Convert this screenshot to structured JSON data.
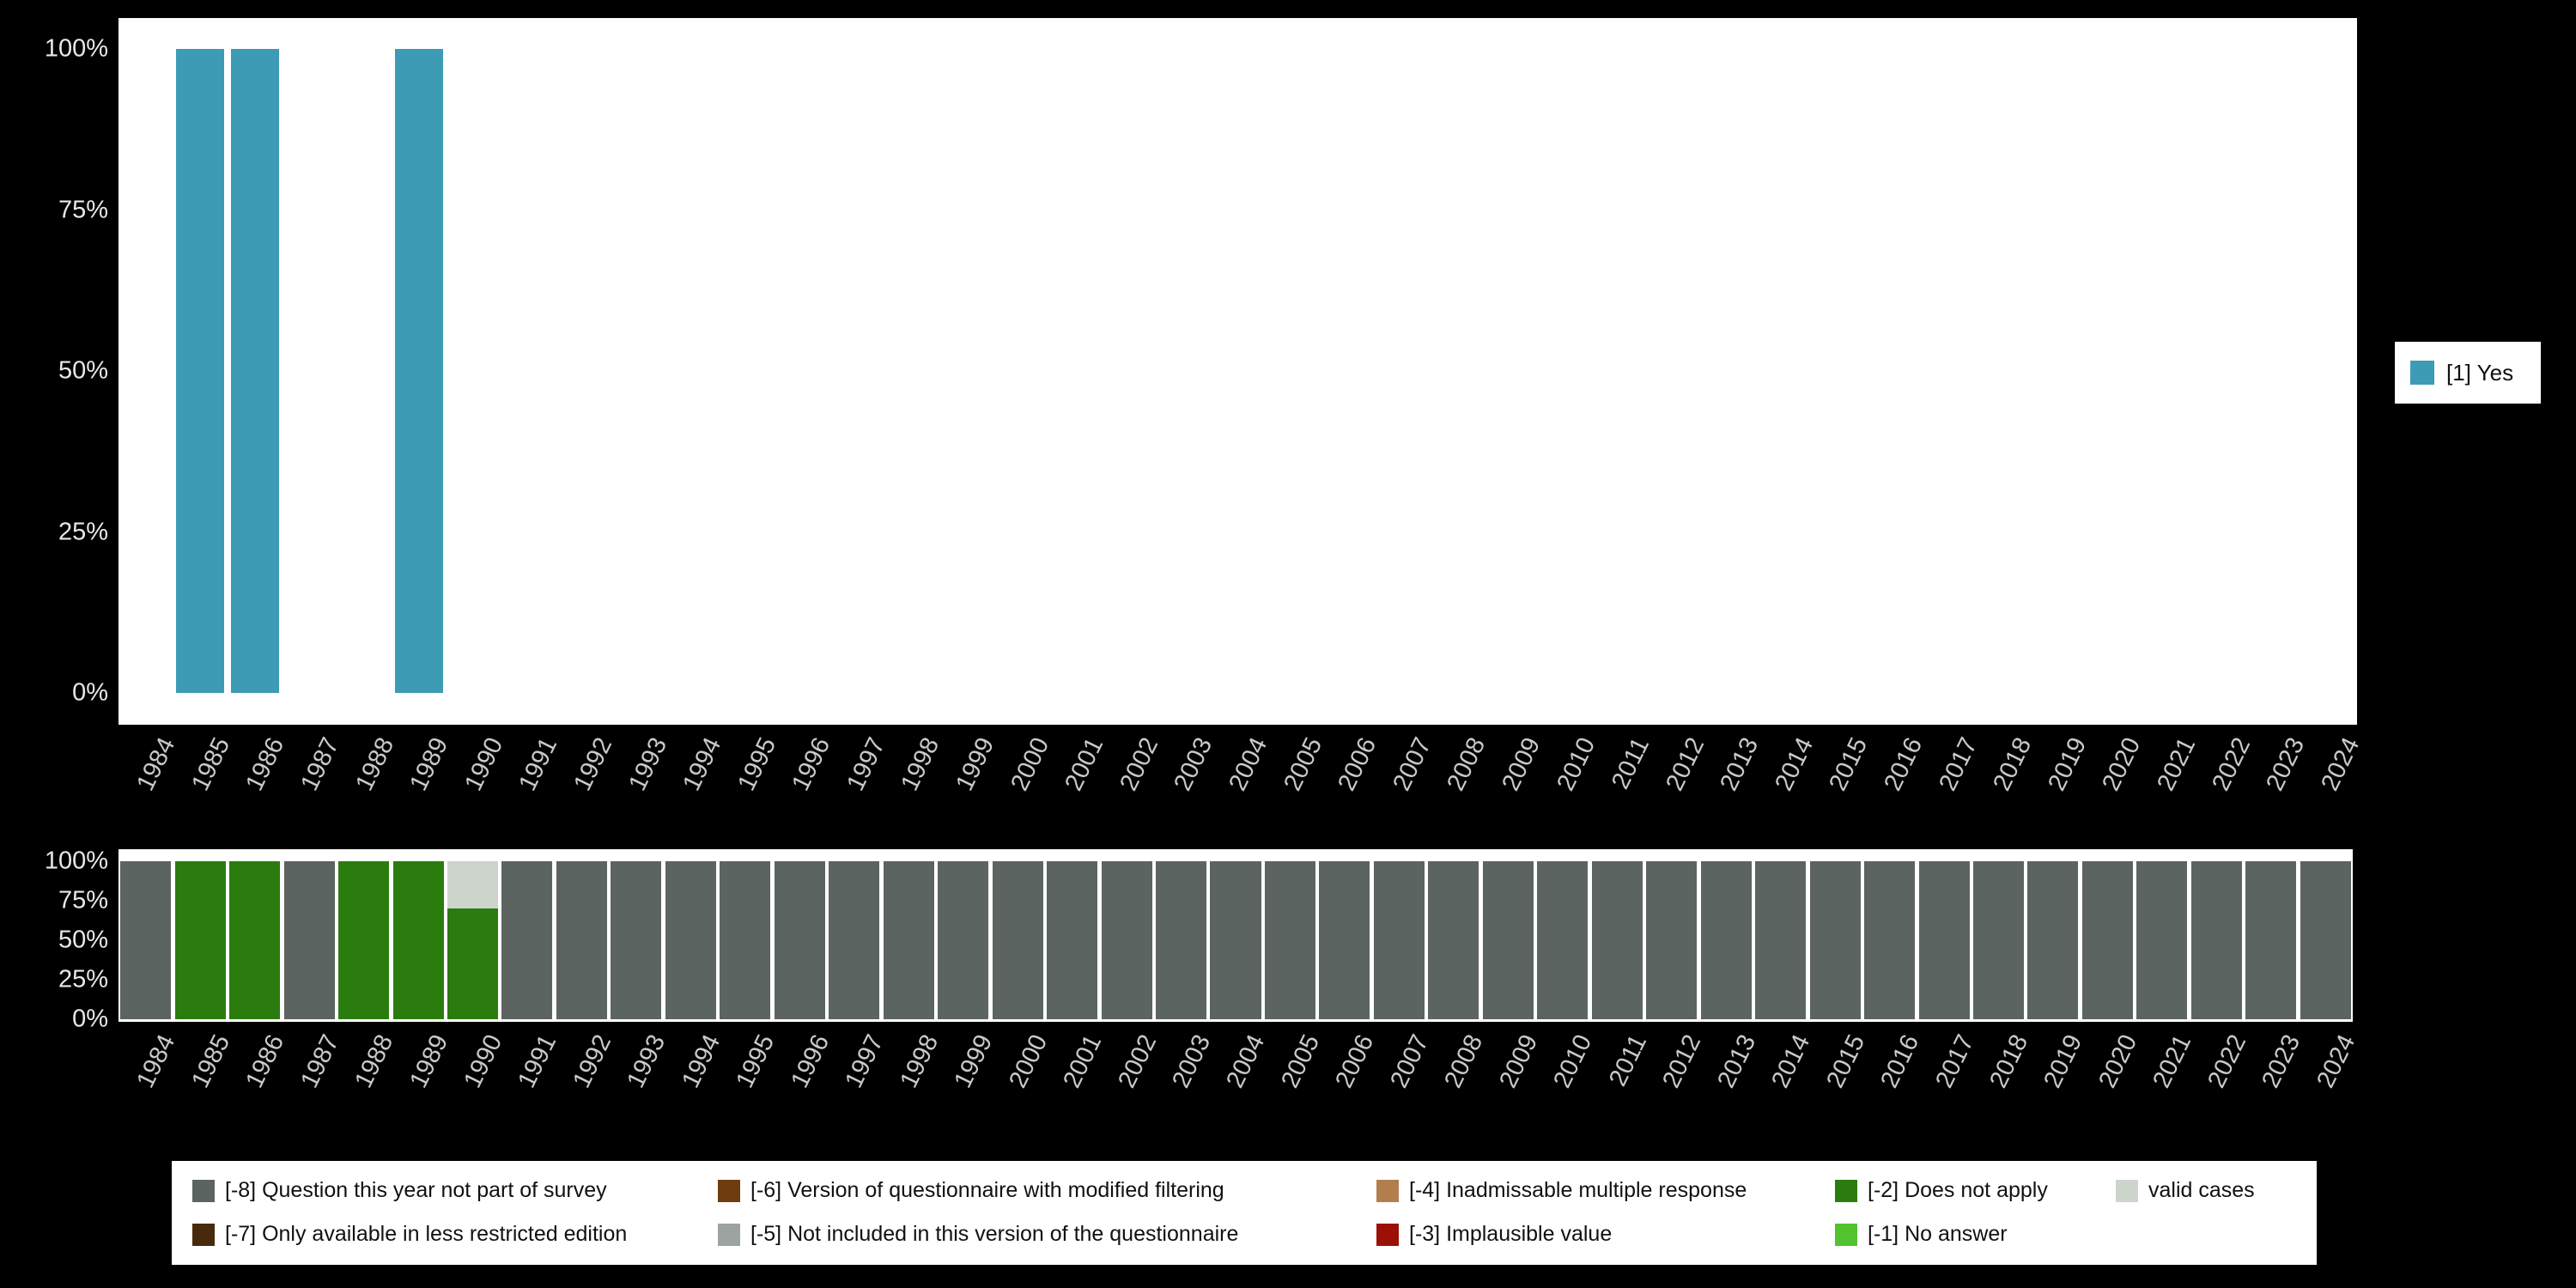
{
  "page_background": "#000000",
  "chart_data": [
    {
      "id": "distribution",
      "type": "bar",
      "stacked": true,
      "title": "",
      "x": [
        1984,
        1985,
        1986,
        1987,
        1988,
        1989,
        1990,
        1991,
        1992,
        1993,
        1994,
        1995,
        1996,
        1997,
        1998,
        1999,
        2000,
        2001,
        2002,
        2003,
        2004,
        2005,
        2006,
        2007,
        2008,
        2009,
        2010,
        2011,
        2012,
        2013,
        2014,
        2015,
        2016,
        2017,
        2018,
        2019,
        2020,
        2021,
        2022,
        2023,
        2024
      ],
      "ylim": [
        0,
        100
      ],
      "ytick_values": [
        0,
        25,
        50,
        75,
        100
      ],
      "ytick_labels": [
        "0%",
        "25%",
        "50%",
        "75%",
        "100%"
      ],
      "grid": false,
      "legend_position": "right",
      "series": [
        {
          "name": "[1] Yes",
          "color": "#3d9bb5",
          "values": [
            0,
            100,
            100,
            0,
            0,
            100,
            0,
            0,
            0,
            0,
            0,
            0,
            0,
            0,
            0,
            0,
            0,
            0,
            0,
            0,
            0,
            0,
            0,
            0,
            0,
            0,
            0,
            0,
            0,
            0,
            0,
            0,
            0,
            0,
            0,
            0,
            0,
            0,
            0,
            0,
            0
          ]
        }
      ]
    },
    {
      "id": "missing-values",
      "type": "bar",
      "stacked": true,
      "title": "",
      "x": [
        1984,
        1985,
        1986,
        1987,
        1988,
        1989,
        1990,
        1991,
        1992,
        1993,
        1994,
        1995,
        1996,
        1997,
        1998,
        1999,
        2000,
        2001,
        2002,
        2003,
        2004,
        2005,
        2006,
        2007,
        2008,
        2009,
        2010,
        2011,
        2012,
        2013,
        2014,
        2015,
        2016,
        2017,
        2018,
        2019,
        2020,
        2021,
        2022,
        2023,
        2024
      ],
      "ylim": [
        0,
        100
      ],
      "ytick_values": [
        0,
        25,
        50,
        75,
        100
      ],
      "ytick_labels": [
        "0%",
        "25%",
        "50%",
        "75%",
        "100%"
      ],
      "grid": false,
      "legend_position": "bottom",
      "series": [
        {
          "name": "[-8] Question this year not part of survey",
          "color": "#5c6462",
          "values": [
            100,
            0,
            0,
            100,
            0,
            0,
            0,
            100,
            100,
            100,
            100,
            100,
            100,
            100,
            100,
            100,
            100,
            100,
            100,
            100,
            100,
            100,
            100,
            100,
            100,
            100,
            100,
            100,
            100,
            100,
            100,
            100,
            100,
            100,
            100,
            100,
            100,
            100,
            100,
            100,
            100
          ]
        },
        {
          "name": "[-2] Does not apply",
          "color": "#2b7c0e",
          "values": [
            0,
            100,
            100,
            0,
            100,
            100,
            70,
            0,
            0,
            0,
            0,
            0,
            0,
            0,
            0,
            0,
            0,
            0,
            0,
            0,
            0,
            0,
            0,
            0,
            0,
            0,
            0,
            0,
            0,
            0,
            0,
            0,
            0,
            0,
            0,
            0,
            0,
            0,
            0,
            0,
            0
          ]
        },
        {
          "name": "valid cases",
          "color": "#ccd4cb",
          "values": [
            0,
            0,
            0,
            0,
            0,
            0,
            30,
            0,
            0,
            0,
            0,
            0,
            0,
            0,
            0,
            0,
            0,
            0,
            0,
            0,
            0,
            0,
            0,
            0,
            0,
            0,
            0,
            0,
            0,
            0,
            0,
            0,
            0,
            0,
            0,
            0,
            0,
            0,
            0,
            0,
            0
          ]
        }
      ]
    }
  ],
  "legend_right": {
    "label": "[1] Yes",
    "color": "#3d9bb5"
  },
  "legend_bottom": {
    "items": [
      {
        "label": "[-8] Question this year not part of survey",
        "color": "#5c6462"
      },
      {
        "label": "[-6] Version of questionnaire with modified filtering",
        "color": "#6f3c10"
      },
      {
        "label": "[-4] Inadmissable multiple response",
        "color": "#b27e4e"
      },
      {
        "label": "[-2] Does not apply",
        "color": "#2b7c0e"
      },
      {
        "label": "valid cases",
        "color": "#ccd4cb"
      },
      {
        "label": "[-7] Only available in less restricted edition",
        "color": "#47290b"
      },
      {
        "label": "[-5] Not included in this version of the questionnaire",
        "color": "#9ba4a1"
      },
      {
        "label": "[-3] Implausible value",
        "color": "#9c1006"
      },
      {
        "label": "[-1] No answer",
        "color": "#52c22e"
      }
    ]
  }
}
